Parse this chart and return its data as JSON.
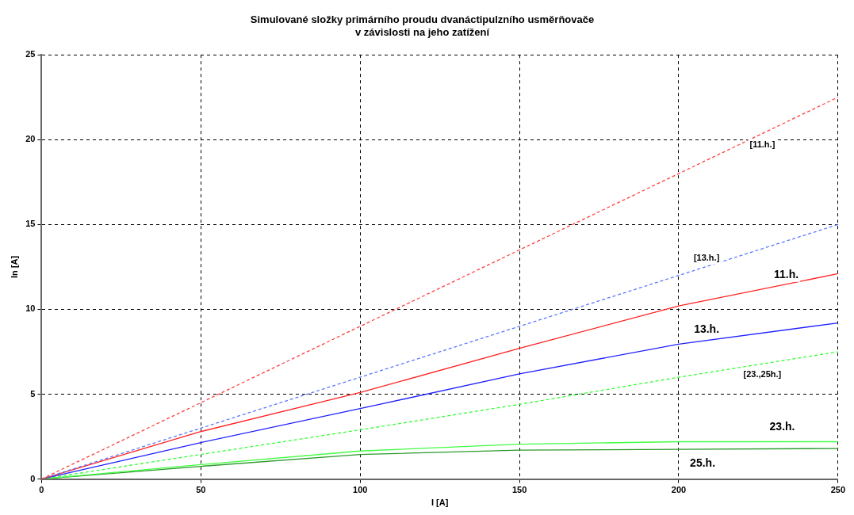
{
  "chart_data": {
    "type": "line",
    "title": "Simulované složky primárního proudu dvanáctipulzního usměrňovače\nv závislosti na jeho zatížení",
    "xlabel": "I [A]",
    "ylabel": "In [A]",
    "x": [
      0,
      50,
      100,
      150,
      200,
      250
    ],
    "series": [
      {
        "name": "[11.h.]",
        "color": "#ff4040",
        "line_style": "dashed",
        "values": [
          0,
          4.5,
          9,
          13.5,
          18,
          22.5
        ]
      },
      {
        "name": "[13.h.]",
        "color": "#5a78ff",
        "line_style": "dashed",
        "values": [
          0,
          3,
          6,
          9,
          12,
          15
        ]
      },
      {
        "name": "11.h.",
        "color": "#ff2020",
        "line_style": "solid",
        "values": [
          0,
          2.8,
          5.1,
          7.7,
          10.2,
          12.1
        ]
      },
      {
        "name": "13.h.",
        "color": "#2020ff",
        "line_style": "solid",
        "values": [
          0,
          2.15,
          4.15,
          6.2,
          7.95,
          9.2
        ]
      },
      {
        "name": "[23.,25h.]",
        "color": "#30ff30",
        "line_style": "dashed",
        "values": [
          0,
          1.45,
          2.9,
          4.4,
          6,
          7.5
        ]
      },
      {
        "name": "23.h.",
        "color": "#40ff40",
        "line_style": "solid",
        "values": [
          0,
          0.85,
          1.65,
          2.05,
          2.2,
          2.2
        ]
      },
      {
        "name": "25.h.",
        "color": "#2a9a2a",
        "line_style": "solid",
        "values": [
          0,
          0.75,
          1.45,
          1.7,
          1.75,
          1.8
        ]
      }
    ],
    "xlim": [
      0,
      250
    ],
    "xticks": [
      0,
      50,
      100,
      150,
      200,
      250
    ],
    "ylim": [
      0,
      25
    ],
    "yticks": [
      0,
      5,
      10,
      15,
      20,
      25
    ],
    "grid": true,
    "legend": false,
    "marker": "none"
  }
}
